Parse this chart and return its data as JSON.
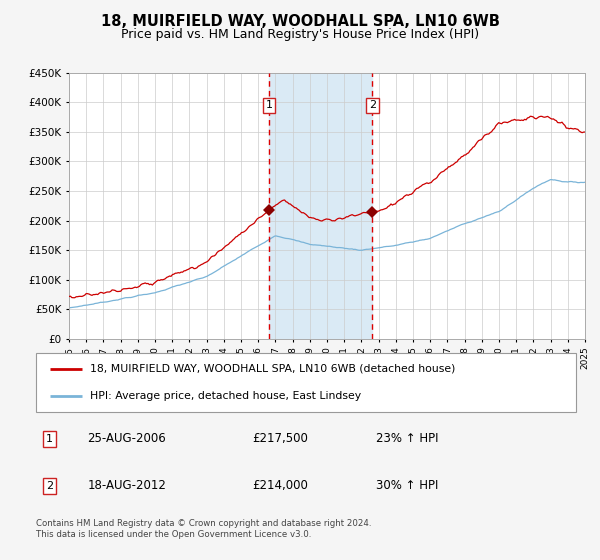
{
  "title": "18, MUIRFIELD WAY, WOODHALL SPA, LN10 6WB",
  "subtitle": "Price paid vs. HM Land Registry's House Price Index (HPI)",
  "hpi_label": "HPI: Average price, detached house, East Lindsey",
  "property_label": "18, MUIRFIELD WAY, WOODHALL SPA, LN10 6WB (detached house)",
  "footnote": "Contains HM Land Registry data © Crown copyright and database right 2024.\nThis data is licensed under the Open Government Licence v3.0.",
  "sale1_date": "25-AUG-2006",
  "sale1_price": 217500,
  "sale1_hpi_pct": "23%",
  "sale2_date": "18-AUG-2012",
  "sale2_price": 214000,
  "sale2_hpi_pct": "30%",
  "ylim": [
    0,
    450000
  ],
  "yticks": [
    0,
    50000,
    100000,
    150000,
    200000,
    250000,
    300000,
    350000,
    400000,
    450000
  ],
  "hpi_color": "#7ab4d8",
  "property_color": "#cc0000",
  "sale_marker_color": "#8b0000",
  "dashed_line_color": "#dd0000",
  "shading_color": "#daeaf5",
  "background_color": "#ffffff",
  "grid_color": "#cccccc",
  "year_start": 1995,
  "year_end": 2025,
  "sale1_year": 2006.63,
  "sale2_year": 2012.63
}
